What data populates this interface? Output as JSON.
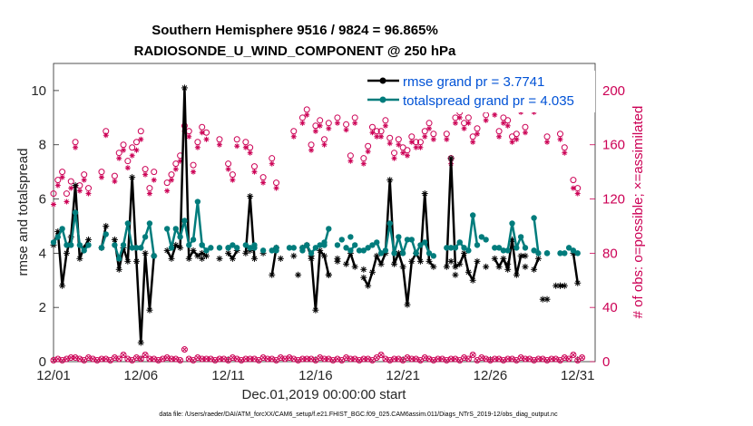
{
  "chart_data": {
    "type": "line",
    "title_line1": "Southern Hemisphere 9516 / 9824 = 96.865%",
    "title_line2": "RADIOSONDE_U_WIND_COMPONENT @ 250 hPa",
    "xlabel": "Dec.01,2019 00:00:00 start",
    "ylabel_left": "rmse and totalspread",
    "ylabel_right": "# of obs: o=possible; ×=assimilated",
    "footnote": "data file: /Users/raeder/DAI/ATM_forcXX/CAM6_setup/f.e21.FHIST_BGC.f09_025.CAM6assim.011/Diags_NTrS_2019-12/obs_diag_output.nc",
    "x_tick_labels": [
      "12/01",
      "12/06",
      "12/11",
      "12/16",
      "12/21",
      "12/26",
      "12/31"
    ],
    "x_tick_days": [
      1,
      6,
      11,
      16,
      21,
      26,
      31
    ],
    "xlim": [
      1,
      32
    ],
    "ylim_left": [
      0,
      11
    ],
    "yticks_left": [
      "0",
      "2",
      "4",
      "6",
      "8",
      "10"
    ],
    "ylim_right": [
      0,
      220
    ],
    "yticks_right": [
      "0",
      "40",
      "80",
      "120",
      "160",
      "200"
    ],
    "x": [
      1.0,
      1.25,
      1.5,
      1.75,
      2.0,
      2.25,
      2.5,
      2.75,
      3.0,
      3.25,
      3.5,
      3.75,
      4.0,
      4.25,
      4.5,
      4.75,
      5.0,
      5.25,
      5.5,
      5.75,
      6.0,
      6.25,
      6.5,
      6.75,
      7.0,
      7.25,
      7.5,
      7.75,
      8.0,
      8.25,
      8.5,
      8.75,
      9.0,
      9.25,
      9.5,
      9.75,
      10.0,
      10.25,
      10.5,
      10.75,
      11.0,
      11.25,
      11.5,
      11.75,
      12.0,
      12.25,
      12.5,
      12.75,
      13.0,
      13.25,
      13.5,
      13.75,
      14.0,
      14.25,
      14.5,
      14.75,
      15.0,
      15.25,
      15.5,
      15.75,
      16.0,
      16.25,
      16.5,
      16.75,
      17.0,
      17.25,
      17.5,
      17.75,
      18.0,
      18.25,
      18.5,
      18.75,
      19.0,
      19.25,
      19.5,
      19.75,
      20.0,
      20.25,
      20.5,
      20.75,
      21.0,
      21.25,
      21.5,
      21.75,
      22.0,
      22.25,
      22.5,
      22.75,
      23.0,
      23.25,
      23.5,
      23.75,
      24.0,
      24.25,
      24.5,
      24.75,
      25.0,
      25.25,
      25.5,
      25.75,
      26.0,
      26.25,
      26.5,
      26.75,
      27.0,
      27.25,
      27.5,
      27.75,
      28.0,
      28.25,
      28.5,
      28.75,
      29.0,
      29.25,
      29.5,
      29.75,
      30.0,
      30.25,
      30.5,
      30.75,
      31.0,
      31.25
    ],
    "series": [
      {
        "name": "rmse",
        "legend": "rmse grand pr = 3.7741",
        "color": "#000000",
        "values": [
          4.3,
          4.8,
          2.8,
          4.0,
          4.6,
          6.5,
          3.8,
          4.2,
          4.5,
          null,
          null,
          4.2,
          5.0,
          null,
          4.5,
          3.4,
          4.2,
          3.7,
          6.8,
          3.7,
          0.7,
          4.0,
          1.9,
          3.9,
          null,
          null,
          4.1,
          3.8,
          4.3,
          4.2,
          10.1,
          3.8,
          4.1,
          3.9,
          4.0,
          3.9,
          null,
          null,
          3.8,
          null,
          4.0,
          3.8,
          4.1,
          null,
          4.0,
          6.1,
          3.8,
          null,
          4.0,
          null,
          3.2,
          4.2,
          null,
          null,
          null,
          3.9,
          null,
          4.2,
          4.3,
          3.9,
          1.9,
          4.1,
          3.9,
          3.2,
          null,
          3.7,
          null,
          3.6,
          4.0,
          3.5,
          null,
          3.1,
          2.8,
          3.3,
          3.9,
          3.6,
          4.0,
          6.7,
          3.6,
          4.0,
          3.5,
          2.1,
          3.7,
          4.0,
          3.7,
          6.2,
          3.7,
          3.5,
          null,
          null,
          3.5,
          7.5,
          3.5,
          3.6,
          4.0,
          3.3,
          3.0,
          3.7,
          null,
          3.5,
          null,
          3.8,
          3.5,
          3.8,
          3.4,
          4.5,
          3.2,
          3.9,
          3.9,
          null,
          3.4,
          3.8,
          null,
          2.3,
          null,
          null,
          2.8,
          2.8,
          null,
          4.0,
          2.9,
          null
        ],
        "markers": [
          {
            "x": 9.5,
            "y": 3.8
          },
          {
            "x": 12.25,
            "y": 4.1
          },
          {
            "x": 14.0,
            "y": 3.8
          },
          {
            "x": 15.0,
            "y": 3.2
          },
          {
            "x": 15.75,
            "y": 3.8
          },
          {
            "x": 16.75,
            "y": 3.2
          },
          {
            "x": 17.25,
            "y": 3.8
          },
          {
            "x": 18.75,
            "y": 3.4
          },
          {
            "x": 23.75,
            "y": 3.7
          },
          {
            "x": 24.0,
            "y": 3.2
          },
          {
            "x": 27.0,
            "y": 3.6
          },
          {
            "x": 28.0,
            "y": 3.5
          },
          {
            "x": 29.0,
            "y": 2.3
          },
          {
            "x": 29.75,
            "y": 2.8
          },
          {
            "x": 30.0,
            "y": 2.8
          }
        ]
      },
      {
        "name": "totalspread",
        "legend": "totalspread grand pr = 4.035",
        "color": "#007c7c",
        "values": [
          4.4,
          4.6,
          4.9,
          4.3,
          4.3,
          5.5,
          4.3,
          4.1,
          4.3,
          null,
          null,
          4.2,
          4.7,
          null,
          4.3,
          3.8,
          4.3,
          5.1,
          4.2,
          4.2,
          4.2,
          4.6,
          5.1,
          3.9,
          null,
          null,
          4.9,
          4.2,
          4.9,
          4.6,
          5.2,
          4.3,
          4.5,
          5.9,
          4.3,
          4.1,
          null,
          null,
          4.2,
          null,
          4.2,
          4.3,
          4.2,
          null,
          4.3,
          4.2,
          4.3,
          null,
          4.1,
          null,
          4.1,
          4.2,
          null,
          null,
          null,
          4.2,
          null,
          4.1,
          4.3,
          4.0,
          4.2,
          4.3,
          4.3,
          4.9,
          null,
          4.3,
          null,
          4.2,
          4.1,
          4.3,
          null,
          4.1,
          4.2,
          4.3,
          4.4,
          4.0,
          4.1,
          5.1,
          4.0,
          4.6,
          4.0,
          4.5,
          4.5,
          4.0,
          4.3,
          4.4,
          4.0,
          3.9,
          null,
          null,
          4.2,
          4.2,
          4.2,
          4.4,
          4.2,
          4.1,
          5.4,
          4.3,
          null,
          4.5,
          null,
          4.2,
          4.2,
          4.1,
          4.1,
          5.1,
          4.2,
          4.6,
          4.2,
          null,
          5.3,
          4.0,
          null,
          4.0,
          null,
          null,
          4.0,
          4.0,
          null,
          4.1,
          4.0,
          null
        ],
        "markers": [
          {
            "x": 9.5,
            "y": 4.3
          },
          {
            "x": 10.0,
            "y": 4.2
          },
          {
            "x": 11.0,
            "y": 4.2
          },
          {
            "x": 12.5,
            "y": 4.2
          },
          {
            "x": 13.75,
            "y": 4.1
          },
          {
            "x": 14.5,
            "y": 4.2
          },
          {
            "x": 15.25,
            "y": 4.2
          },
          {
            "x": 16.5,
            "y": 4.4
          },
          {
            "x": 17.5,
            "y": 4.5
          },
          {
            "x": 18.0,
            "y": 4.6
          },
          {
            "x": 18.5,
            "y": 4.1
          },
          {
            "x": 24.25,
            "y": 4.4
          },
          {
            "x": 25.5,
            "y": 4.6
          },
          {
            "x": 28.5,
            "y": 4.1
          },
          {
            "x": 29.25,
            "y": 4.0
          },
          {
            "x": 30.5,
            "y": 4.2
          }
        ]
      }
    ],
    "obs_possible": [
      124,
      134,
      140,
      124,
      133,
      162,
      130,
      138,
      128,
      null,
      null,
      140,
      170,
      null,
      137,
      154,
      160,
      148,
      158,
      162,
      170,
      142,
      128,
      140,
      null,
      null,
      132,
      138,
      146,
      152,
      174,
      170,
      145,
      162,
      173,
      169,
      null,
      null,
      164,
      null,
      146,
      138,
      164,
      null,
      162,
      158,
      144,
      null,
      136,
      null,
      150,
      132,
      null,
      null,
      null,
      170,
      null,
      180,
      186,
      160,
      174,
      178,
      164,
      176,
      null,
      180,
      null,
      175,
      152,
      180,
      null,
      150,
      159,
      173,
      170,
      170,
      178,
      165,
      154,
      164,
      158,
      156,
      166,
      162,
      162,
      170,
      176,
      168,
      null,
      null,
      168,
      150,
      180,
      184,
      176,
      180,
      166,
      172,
      null,
      182,
      null,
      186,
      170,
      180,
      178,
      166,
      168,
      188,
      173,
      null,
      188,
      190,
      null,
      166,
      null,
      null,
      168,
      158,
      null,
      134,
      128,
      null
    ],
    "obs_assimilated": [
      116,
      130,
      136,
      118,
      128,
      158,
      126,
      134,
      124,
      null,
      null,
      136,
      167,
      null,
      133,
      150,
      156,
      143,
      152,
      156,
      164,
      138,
      124,
      134,
      null,
      null,
      126,
      134,
      142,
      148,
      170,
      166,
      140,
      158,
      169,
      164,
      null,
      null,
      160,
      null,
      142,
      134,
      159,
      null,
      158,
      154,
      140,
      null,
      132,
      null,
      146,
      128,
      null,
      null,
      null,
      166,
      null,
      176,
      182,
      156,
      170,
      174,
      160,
      172,
      null,
      176,
      null,
      171,
      148,
      176,
      null,
      146,
      155,
      169,
      166,
      166,
      174,
      161,
      150,
      160,
      154,
      152,
      162,
      158,
      158,
      166,
      172,
      164,
      null,
      null,
      164,
      146,
      176,
      180,
      172,
      176,
      162,
      168,
      null,
      178,
      null,
      182,
      166,
      176,
      174,
      162,
      164,
      184,
      169,
      null,
      184,
      186,
      null,
      162,
      null,
      null,
      164,
      154,
      null,
      128,
      124,
      null
    ],
    "obs_bottom_possible": [
      1,
      2,
      1,
      2,
      3,
      3,
      2,
      1,
      3,
      2,
      1,
      2,
      2,
      1,
      3,
      2,
      5,
      2,
      1,
      3,
      2,
      5,
      2,
      2,
      1,
      2,
      3,
      2,
      2,
      1,
      9,
      2,
      1,
      3,
      2,
      2,
      2,
      1,
      2,
      2,
      1,
      3,
      2,
      1,
      2,
      2,
      2,
      1,
      3,
      2,
      2,
      1,
      3,
      2,
      3,
      2,
      1,
      2,
      2,
      2,
      1,
      3,
      2,
      2,
      1,
      2,
      1,
      3,
      2,
      2,
      1,
      2,
      2,
      1,
      3,
      5,
      2,
      1,
      2,
      2,
      1,
      3,
      2,
      2,
      1,
      3,
      2,
      1,
      2,
      2,
      1,
      2,
      2,
      1,
      3,
      2,
      5,
      1,
      3,
      2,
      1,
      2,
      2,
      1,
      2,
      2,
      1,
      3,
      2,
      2,
      1,
      2,
      2,
      1,
      2,
      2,
      1,
      3,
      2,
      5,
      1,
      3
    ],
    "colors": {
      "rmse": "#000000",
      "totalspread": "#007c7c",
      "obs": "#cc0055",
      "legend_text": "#0052d6"
    },
    "legend_position": "top-right"
  }
}
